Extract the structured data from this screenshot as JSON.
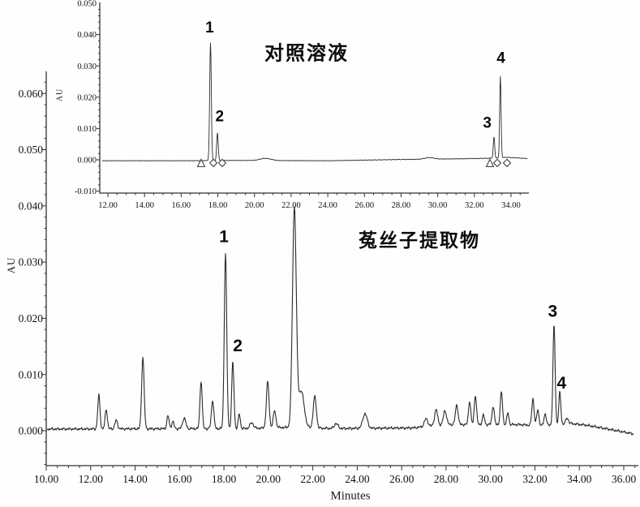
{
  "page": {
    "background": "#fefefe",
    "trace_color": "#2b2b2b",
    "axis_color": "#333333",
    "text_color": "#111111"
  },
  "chart_data": [
    {
      "type": "line",
      "id": "extract",
      "title": "菟丝子提取物",
      "xlabel": "Minutes",
      "ylabel": "AU",
      "xlim": [
        10.0,
        36.66
      ],
      "ylim": [
        -0.0062,
        0.0639
      ],
      "grid": false,
      "x_axis": {
        "tick_labels": [
          "10.00",
          "12.00",
          "14.00",
          "16.00",
          "18.00",
          "20.00",
          "22.00",
          "24.00",
          "26.00",
          "28.00",
          "30.00",
          "32.00",
          "34.00",
          "36.00"
        ],
        "major_step": 2.0,
        "minor_step": 0.5,
        "minor_min": 10.0,
        "minor_max": 36.5
      },
      "y_axis": {
        "tick_labels": [
          "0.000",
          "0.010",
          "0.020",
          "0.030",
          "0.040",
          "0.050",
          "0.060"
        ],
        "major_step": 0.01,
        "minor_step": 0.002,
        "minor_min": -0.006,
        "minor_max": 0.0635
      },
      "trace": {
        "t_start": 10.05,
        "t_end": 36.45,
        "sample_step": 0.02,
        "noise_amp": 0.0003,
        "baseline_nodes": [
          [
            10,
            0.0003
          ],
          [
            19,
            0.0004
          ],
          [
            20.8,
            0.0006
          ],
          [
            23,
            0.0004
          ],
          [
            26.5,
            0.0005
          ],
          [
            28,
            0.0011
          ],
          [
            31.3,
            0.0011
          ],
          [
            32.3,
            0.0009
          ],
          [
            33.6,
            0.0013
          ],
          [
            34.3,
            0.001
          ],
          [
            35.3,
            0.0003
          ],
          [
            36.5,
            -0.0006
          ]
        ],
        "peaks": [
          [
            12.37,
            0.006,
            0.05
          ],
          [
            12.7,
            0.0035,
            0.05
          ],
          [
            13.15,
            0.0015,
            0.06
          ],
          [
            14.35,
            0.0128,
            0.055
          ],
          [
            15.48,
            0.0023,
            0.05
          ],
          [
            15.7,
            0.0013,
            0.05
          ],
          [
            16.21,
            0.0019,
            0.07
          ],
          [
            16.97,
            0.0085,
            0.05
          ],
          [
            17.49,
            0.005,
            0.055
          ],
          [
            18.07,
            0.0312,
            0.055
          ],
          [
            18.4,
            0.0118,
            0.05
          ],
          [
            18.69,
            0.0026,
            0.045
          ],
          [
            19.25,
            0.001,
            0.08
          ],
          [
            19.97,
            0.0082,
            0.06
          ],
          [
            20.28,
            0.003,
            0.06
          ],
          [
            21.17,
            0.039,
            0.085
          ],
          [
            21.48,
            0.0065,
            0.13
          ],
          [
            22.09,
            0.0056,
            0.07
          ],
          [
            23.05,
            0.0009,
            0.08
          ],
          [
            24.35,
            0.0026,
            0.1
          ],
          [
            27.1,
            0.0014,
            0.08
          ],
          [
            27.55,
            0.0028,
            0.07
          ],
          [
            27.95,
            0.0025,
            0.07
          ],
          [
            28.48,
            0.0035,
            0.06
          ],
          [
            29.06,
            0.0042,
            0.05
          ],
          [
            29.32,
            0.0052,
            0.05
          ],
          [
            29.68,
            0.0017,
            0.05
          ],
          [
            30.12,
            0.0033,
            0.05
          ],
          [
            30.49,
            0.0058,
            0.05
          ],
          [
            30.78,
            0.0021,
            0.045
          ],
          [
            31.91,
            0.0047,
            0.05
          ],
          [
            32.13,
            0.0028,
            0.05
          ],
          [
            32.46,
            0.0021,
            0.05
          ],
          [
            32.86,
            0.0178,
            0.048
          ],
          [
            33.12,
            0.0057,
            0.045
          ],
          [
            33.45,
            0.001,
            0.06
          ]
        ]
      },
      "peak_annotations": [
        {
          "text": "1",
          "t": 18.0,
          "au": 0.0346
        },
        {
          "text": "2",
          "t": 18.62,
          "au": 0.0152
        },
        {
          "text": "3",
          "t": 32.8,
          "au": 0.0213
        },
        {
          "text": "4",
          "t": 33.2,
          "au": 0.0086
        }
      ],
      "markers": []
    },
    {
      "type": "line",
      "id": "reference",
      "title": "对照溶液",
      "xlabel": "",
      "ylabel": "AU",
      "xlim": [
        11.56,
        34.97
      ],
      "ylim": [
        -0.0106,
        0.0502
      ],
      "grid": false,
      "x_axis": {
        "tick_labels": [
          "12.00",
          "14.00",
          "16.00",
          "18.00",
          "20.00",
          "22.00",
          "24.00",
          "26.00",
          "28.00",
          "30.00",
          "32.00",
          "34.00"
        ],
        "major_step": 2.0,
        "minor_step": 0.5,
        "minor_min": 12.0,
        "minor_max": 34.5
      },
      "y_axis": {
        "tick_labels": [
          "-0.010",
          "0.000",
          "0.010",
          "0.020",
          "0.030",
          "0.040",
          "0.050"
        ],
        "major_step": 0.01,
        "minor_step": 0.002,
        "minor_min": -0.01,
        "minor_max": 0.0495
      },
      "trace": {
        "t_start": 11.7,
        "t_end": 34.9,
        "sample_step": 0.02,
        "noise_amp": 0.00012,
        "baseline_nodes": [
          [
            11.7,
            -0.0003
          ],
          [
            16,
            -0.0003
          ],
          [
            19,
            -0.0002
          ],
          [
            24,
            -0.0003
          ],
          [
            28,
            0.0001
          ],
          [
            31,
            0.0003
          ],
          [
            32.8,
            0.0005
          ],
          [
            33.8,
            0.0008
          ],
          [
            34.9,
            0.0004
          ]
        ],
        "peaks": [
          [
            17.6,
            0.0375,
            0.045
          ],
          [
            17.98,
            0.0088,
            0.042
          ],
          [
            20.6,
            0.0007,
            0.3
          ],
          [
            29.55,
            0.0005,
            0.25
          ],
          [
            33.07,
            0.0068,
            0.038
          ],
          [
            33.42,
            0.026,
            0.038
          ]
        ]
      },
      "peak_annotations": [
        {
          "text": "1",
          "t": 17.55,
          "au": 0.0424
        },
        {
          "text": "2",
          "t": 18.1,
          "au": 0.014
        },
        {
          "text": "3",
          "t": 32.7,
          "au": 0.012
        },
        {
          "text": "4",
          "t": 33.45,
          "au": 0.0327
        }
      ],
      "markers": [
        {
          "shape": "triangle",
          "t": 17.09,
          "au": -0.001
        },
        {
          "shape": "diamond",
          "t": 17.76,
          "au": -0.001
        },
        {
          "shape": "diamond",
          "t": 18.24,
          "au": -0.001
        },
        {
          "shape": "triangle",
          "t": 32.85,
          "au": -0.001
        },
        {
          "shape": "diamond",
          "t": 33.25,
          "au": -0.001
        },
        {
          "shape": "diamond",
          "t": 33.78,
          "au": -0.001
        }
      ]
    }
  ]
}
